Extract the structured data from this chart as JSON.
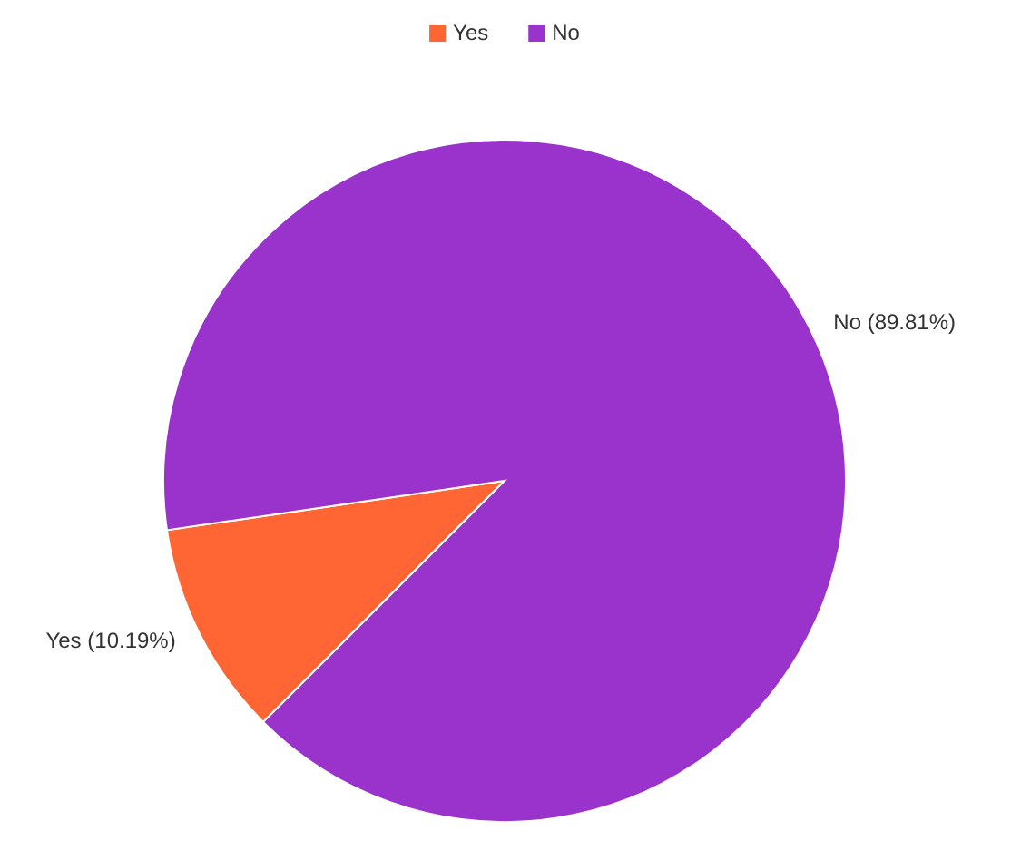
{
  "chart_data": {
    "type": "pie",
    "categories": [
      "Yes",
      "No"
    ],
    "values": [
      10.19,
      89.81
    ],
    "colors": [
      "#ff6633",
      "#9933cc"
    ],
    "value_labels": [
      "Yes (10.19%)",
      "No (89.81%)"
    ],
    "legend": "top"
  }
}
